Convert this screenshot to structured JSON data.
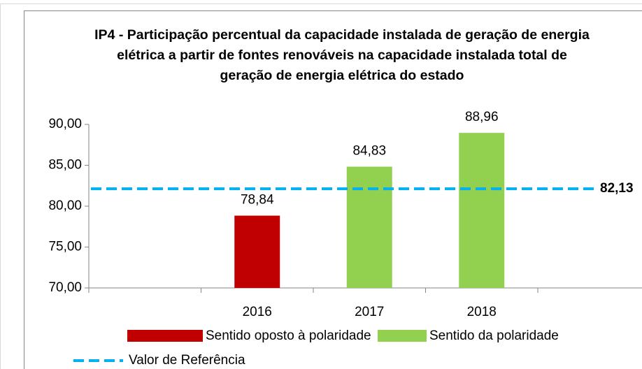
{
  "chart_data": {
    "type": "bar",
    "title": "IP4 - Participação percentual da capacidade instalada de geração de energia elétrica a partir de fontes renováveis na capacidade instalada total de geração de energia elétrica do estado",
    "categories": [
      null,
      "2016",
      "2017",
      "2018",
      null
    ],
    "series": [
      {
        "name": "Sentido oposto à polaridade",
        "color": "#c00000",
        "values": [
          null,
          78.84,
          null,
          null,
          null
        ],
        "value_labels": [
          null,
          "78,84",
          null,
          null,
          null
        ]
      },
      {
        "name": "Sentido da polaridade",
        "color": "#92d050",
        "values": [
          null,
          null,
          84.83,
          88.96,
          null
        ],
        "value_labels": [
          null,
          null,
          "84,83",
          "88,96",
          null
        ]
      }
    ],
    "reference": {
      "name": "Valor de Referência",
      "value": 82.13,
      "label": "82,13",
      "color": "#00b0f0"
    },
    "ylim": [
      70,
      90
    ],
    "yticks": [
      {
        "value": 70,
        "label": "70,00"
      },
      {
        "value": 75,
        "label": "75,00"
      },
      {
        "value": 80,
        "label": "80,00"
      },
      {
        "value": 85,
        "label": "85,00"
      },
      {
        "value": 90,
        "label": "90,00"
      }
    ]
  }
}
